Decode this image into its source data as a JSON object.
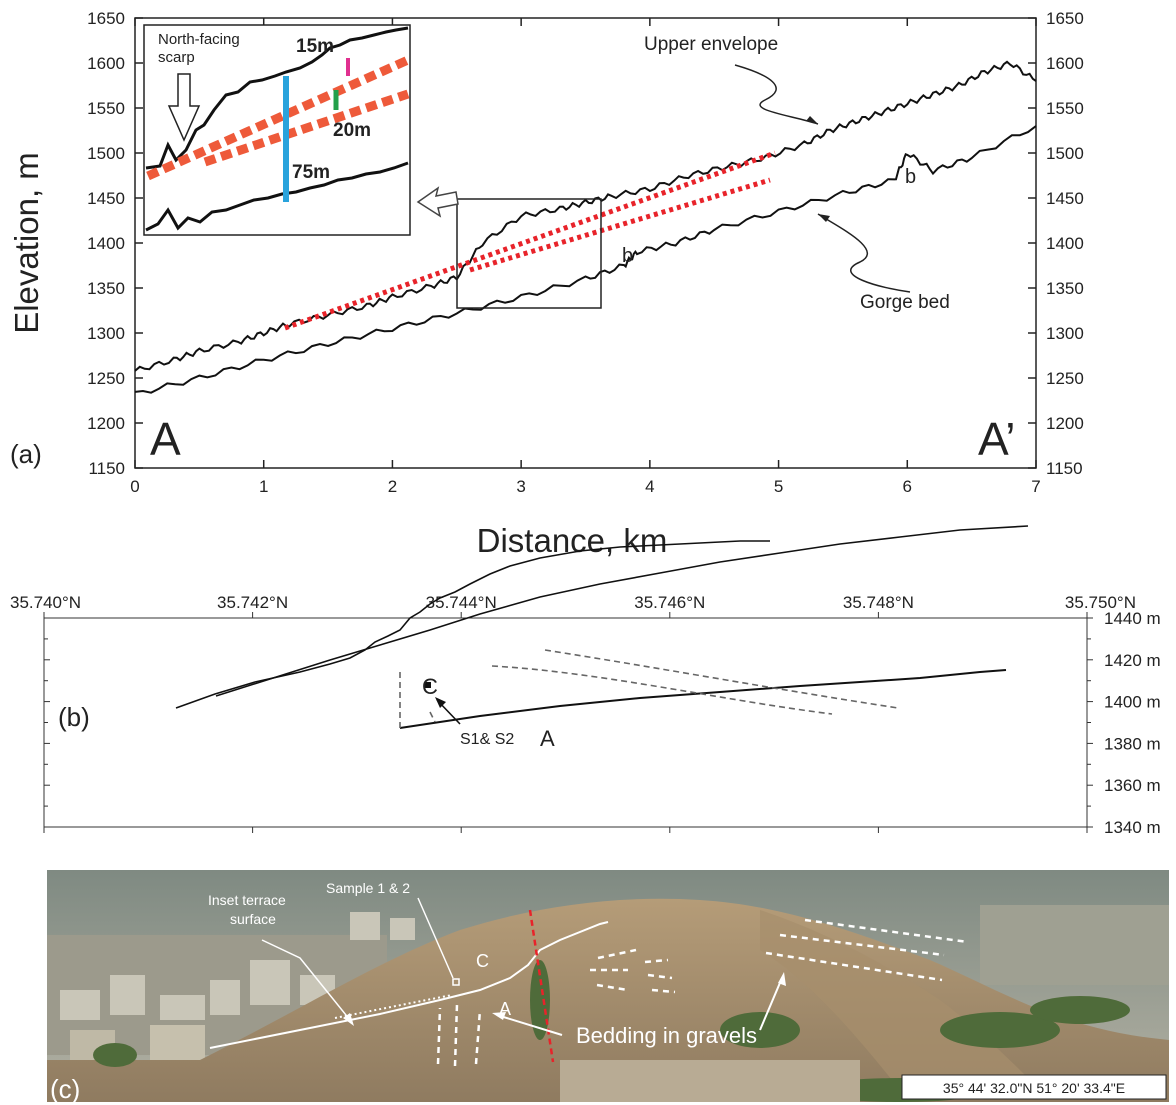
{
  "panel_a": {
    "label": "(a)",
    "ylabel": "Elevation, m",
    "xlabel": "Distance, km",
    "x_ticks": [
      "0",
      "1",
      "2",
      "3",
      "4",
      "5",
      "6",
      "7"
    ],
    "y_ticks": [
      "1150",
      "1200",
      "1250",
      "1300",
      "1350",
      "1400",
      "1450",
      "1500",
      "1550",
      "1600",
      "1650"
    ],
    "end_left": "A",
    "end_right": "A’",
    "annot_upper": "Upper envelope",
    "annot_gorge": "Gorge bed",
    "annot_b": "b",
    "inset": {
      "scarp_label_1": "North-facing",
      "scarp_label_2": "scarp",
      "m15": "15m",
      "m20": "20m",
      "m75": "75m",
      "colors": {
        "m15": "#e0308f",
        "m20": "#22a04a",
        "m75": "#29a3dc",
        "terrace": "#ee5a3a"
      }
    }
  },
  "panel_b": {
    "label": "(b)",
    "lat_ticks": [
      "35.740°N",
      "35.742°N",
      "35.744°N",
      "35.746°N",
      "35.748°N",
      "35.750°N"
    ],
    "elev_ticks": [
      "1440 m",
      "1420 m",
      "1400 m",
      "1380 m",
      "1360 m",
      "1340 m"
    ],
    "unit_c": "C",
    "unit_a": "A",
    "sample": "S1& S2"
  },
  "panel_c": {
    "label": "(c)",
    "inset_terrace_1": "Inset terrace",
    "inset_terrace_2": "surface",
    "sample": "Sample 1 & 2",
    "unit_c": "C",
    "unit_a": "A",
    "bedding": "Bedding in gravels",
    "coords": "35° 44' 32.0\"N   51° 20' 33.4\"E"
  },
  "chart_data": {
    "type": "line",
    "title": "",
    "xlabel": "Distance, km",
    "ylabel": "Elevation, m",
    "xlim": [
      0,
      7
    ],
    "ylim": [
      1150,
      1650
    ],
    "grid": false,
    "series": [
      {
        "name": "Upper envelope",
        "x": [
          0,
          0.3,
          0.5,
          0.8,
          1.0,
          1.2,
          1.5,
          1.8,
          2.0,
          2.3,
          2.5,
          2.7,
          3.0,
          3.3,
          3.5,
          3.7,
          4.0,
          4.3,
          4.6,
          4.9,
          5.2,
          5.4,
          5.6,
          5.8,
          6.0,
          6.2,
          6.4,
          6.6,
          6.8,
          7.0
        ],
        "y": [
          1258,
          1270,
          1280,
          1290,
          1300,
          1310,
          1320,
          1330,
          1340,
          1352,
          1362,
          1400,
          1430,
          1438,
          1445,
          1452,
          1460,
          1475,
          1485,
          1495,
          1510,
          1525,
          1535,
          1545,
          1555,
          1565,
          1575,
          1590,
          1600,
          1580
        ]
      },
      {
        "name": "Gorge bed",
        "x": [
          0,
          0.5,
          1.0,
          1.5,
          2.0,
          2.5,
          3.0,
          3.5,
          3.8,
          3.9,
          4.2,
          4.5,
          5.0,
          5.5,
          5.9,
          6.0,
          6.2,
          6.5,
          7.0
        ],
        "y": [
          1232,
          1250,
          1270,
          1288,
          1305,
          1322,
          1340,
          1360,
          1375,
          1390,
          1400,
          1415,
          1435,
          1455,
          1470,
          1500,
          1480,
          1495,
          1530
        ]
      }
    ]
  }
}
